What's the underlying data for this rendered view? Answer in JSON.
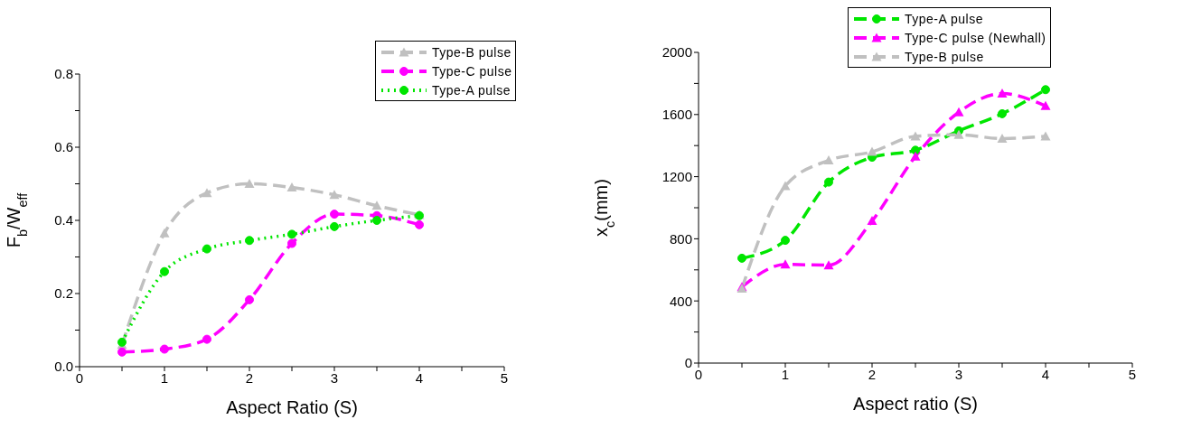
{
  "chart_data": [
    {
      "type": "line",
      "xlabel": "Aspect Ratio (S)",
      "ylabel": "F$_{b}$/W$_{eff}$",
      "x": [
        0.5,
        1,
        1.5,
        2,
        2.5,
        3,
        3.5,
        4
      ],
      "series": [
        {
          "name": "Type-B pulse",
          "color": "#c0c0c0",
          "marker": "triangle",
          "line_style": "dashed",
          "values": [
            0.06,
            0.365,
            0.475,
            0.5,
            0.49,
            0.47,
            0.44,
            0.415
          ]
        },
        {
          "name": "Type-C pulse",
          "color": "#ff00ff",
          "marker": "circle",
          "line_style": "dashed",
          "values": [
            0.04,
            0.048,
            0.075,
            0.183,
            0.337,
            0.417,
            0.413,
            0.388
          ]
        },
        {
          "name": "Type-A pulse",
          "color": "#00e600",
          "marker": "circle",
          "line_style": "dotted",
          "values": [
            0.067,
            0.26,
            0.322,
            0.345,
            0.362,
            0.383,
            0.4,
            0.413
          ]
        }
      ],
      "xlim": [
        0,
        5
      ],
      "xticks": [
        0,
        {
          "value": 0.5,
          "label": null
        },
        1,
        {
          "value": 1.5,
          "label": null
        },
        2,
        {
          "value": 2.5,
          "label": null
        },
        3,
        {
          "value": 3.5,
          "label": null
        },
        4,
        {
          "value": 4.5,
          "label": null
        },
        5
      ],
      "ylim": [
        0,
        0.8
      ],
      "yticks": [
        {
          "value": 0,
          "label": "0.0"
        },
        {
          "value": 0.1,
          "label": null
        },
        0.2,
        {
          "value": 0.3,
          "label": null
        },
        0.4,
        {
          "value": 0.5,
          "label": null
        },
        0.6,
        {
          "value": 0.7,
          "label": null
        },
        0.8
      ],
      "legend": "top right"
    },
    {
      "type": "line",
      "xlabel": "Aspect ratio (S)",
      "ylabel": "x$_{c}$(mm)",
      "x": [
        0.5,
        1,
        1.5,
        2,
        2.5,
        3,
        3.5,
        4
      ],
      "series": [
        {
          "name": "Type-A pulse",
          "color": "#00e600",
          "marker": "circle",
          "line_style": "dashed",
          "values": [
            675,
            790,
            1165,
            1325,
            1370,
            1495,
            1605,
            1760
          ]
        },
        {
          "name": "Type-C pulse (Newhall)",
          "color": "#ff00ff",
          "marker": "triangle",
          "line_style": "dashed",
          "values": [
            490,
            635,
            630,
            915,
            1330,
            1615,
            1735,
            1655
          ]
        },
        {
          "name": "Type-B pulse",
          "color": "#c0c0c0",
          "marker": "triangle",
          "line_style": "dashed",
          "values": [
            480,
            1140,
            1305,
            1360,
            1460,
            1470,
            1445,
            1460
          ]
        }
      ],
      "xlim": [
        0,
        5
      ],
      "xticks": [
        0,
        {
          "value": 0.5,
          "label": null
        },
        1,
        {
          "value": 1.5,
          "label": null
        },
        2,
        {
          "value": 2.5,
          "label": null
        },
        3,
        {
          "value": 3.5,
          "label": null
        },
        4,
        {
          "value": 4.5,
          "label": null
        },
        5
      ],
      "ylim": [
        0,
        2000
      ],
      "yticks": [
        0,
        {
          "value": 200,
          "label": null
        },
        400,
        {
          "value": 600,
          "label": null
        },
        800,
        {
          "value": 1000,
          "label": null
        },
        1200,
        {
          "value": 1400,
          "label": null
        },
        1600,
        {
          "value": 1800,
          "label": null
        },
        2000
      ],
      "legend": "top right"
    }
  ]
}
